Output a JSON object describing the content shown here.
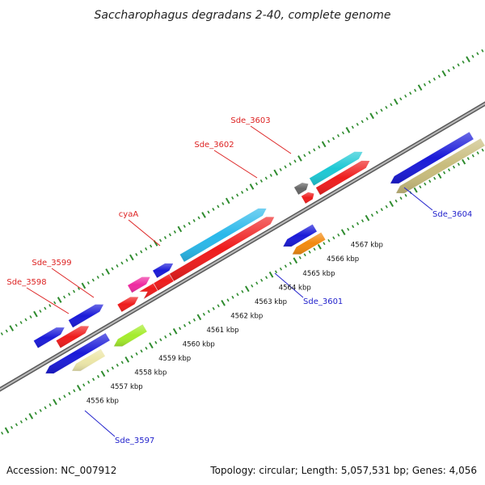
{
  "header": {
    "title": "Saccharophagus degradans 2-40, complete genome"
  },
  "footer": {
    "accession": "Accession: NC_007912",
    "summary": "Topology: circular; Length: 5,057,531 bp; Genes: 4,056"
  },
  "map": {
    "backbone_color": "#888888",
    "tick_color": "#2e8b2e",
    "kbp_labels": [
      "4556 kbp",
      "4557 kbp",
      "4558 kbp",
      "4559 kbp",
      "4560 kbp",
      "4561 kbp",
      "4562 kbp",
      "4563 kbp",
      "4564 kbp",
      "4565 kbp",
      "4566 kbp",
      "4567 kbp"
    ],
    "forward_labels": [
      "Sde_3598",
      "Sde_3599",
      "cyaA",
      "Sde_3602",
      "Sde_3603"
    ],
    "reverse_labels": [
      "Sde_3597",
      "Sde_3601",
      "Sde_3604"
    ],
    "label_colors": {
      "forward": "#dd2222",
      "reverse": "#2222cc"
    },
    "feature_colors": {
      "blue": "#1a1ad8",
      "red": "#ee1c1c",
      "cyan": "#1cc8d4",
      "skyblue": "#29b8ea",
      "magenta": "#ee2aa0",
      "gray": "#666666",
      "orange": "#f28a10",
      "khaki": "#c8bc7c",
      "lightkhaki": "#ece6a8",
      "lime": "#a4ec2c"
    }
  }
}
